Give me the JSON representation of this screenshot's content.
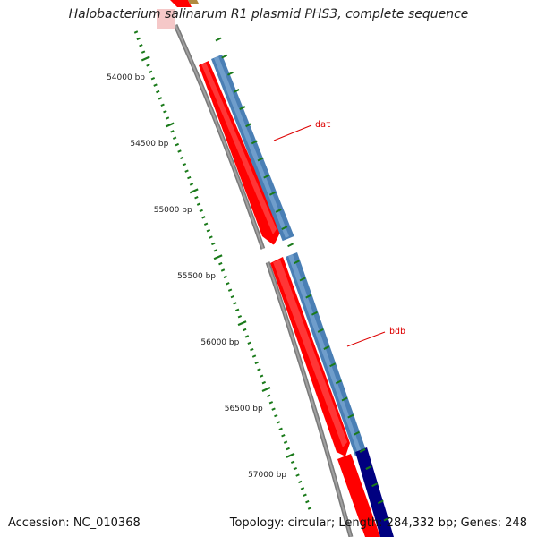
{
  "title": "Halobacterium salinarum R1 plasmid PHS3, complete sequence",
  "footer": {
    "accession": "Accession: NC_010368",
    "summary": "Topology: circular; Length: 284,332 bp; Genes: 248"
  },
  "colors": {
    "background": "#ffffff",
    "backbone": "#808080",
    "forward_gene": "#ff0000",
    "blue_feature": "#4a7fb5",
    "navy_feature": "#000080",
    "tick_green": "#1a7a1a",
    "label_red": "#dd0000"
  },
  "scale": {
    "positions_bp": [
      54000,
      54500,
      55000,
      55500,
      56000,
      56500,
      57000
    ],
    "labels": [
      "54000 bp",
      "54500 bp",
      "55000 bp",
      "55500 bp",
      "56000 bp",
      "56500 bp",
      "57000 bp"
    ]
  },
  "genes": [
    {
      "name": "dat",
      "strand": "forward",
      "color": "#ff0000"
    },
    {
      "name": "bdb",
      "strand": "forward",
      "color": "#ff0000"
    }
  ],
  "gene_labels": [
    "dat",
    "bdb"
  ]
}
